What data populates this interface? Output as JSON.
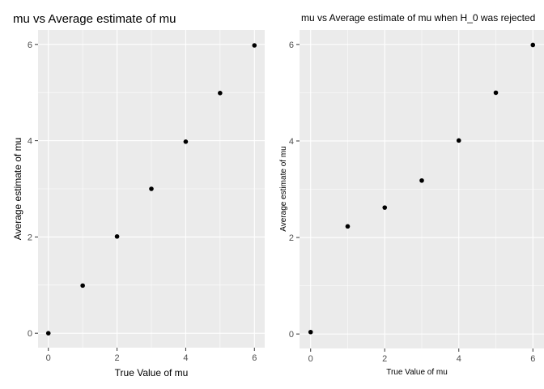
{
  "chart_data": [
    {
      "type": "scatter",
      "title": "mu vs Average estimate of mu",
      "xlabel": "True Value of mu",
      "ylabel": "Average estimate of mu",
      "x": [
        0,
        1,
        2,
        3,
        4,
        5,
        6
      ],
      "y": [
        0.0,
        0.99,
        2.01,
        3.0,
        3.98,
        4.99,
        5.98
      ],
      "xlim": [
        -0.3,
        6.3
      ],
      "ylim": [
        -0.3,
        6.3
      ],
      "xticks": [
        0,
        2,
        4,
        6
      ],
      "yticks": [
        0,
        2,
        4,
        6
      ],
      "grid": true,
      "point_color": "#000000",
      "panel_color": "#ebebeb"
    },
    {
      "type": "scatter",
      "title": "mu vs Average estimate of mu when H_0 was rejected",
      "xlabel": "True Value of mu",
      "ylabel": "Average estimate of mu",
      "x": [
        0,
        1,
        2,
        3,
        4,
        5,
        6
      ],
      "y": [
        0.04,
        2.23,
        2.62,
        3.18,
        4.01,
        5.0,
        5.99
      ],
      "xlim": [
        -0.3,
        6.3
      ],
      "ylim": [
        -0.3,
        6.3
      ],
      "xticks": [
        0,
        2,
        4,
        6
      ],
      "yticks": [
        0,
        2,
        4,
        6
      ],
      "grid": true,
      "point_color": "#000000",
      "panel_color": "#ebebeb"
    }
  ]
}
